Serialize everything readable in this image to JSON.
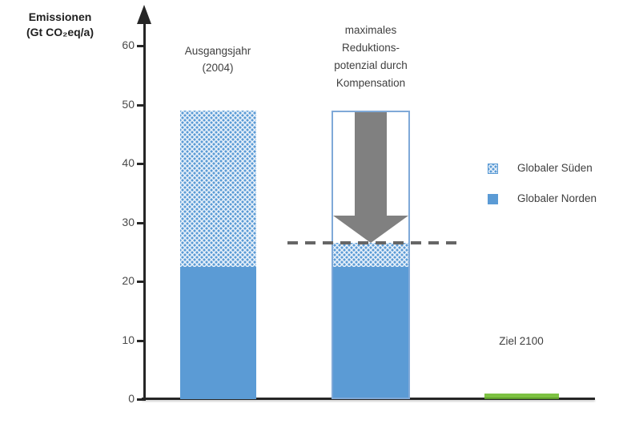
{
  "axis_title": {
    "line1": "Emissionen",
    "line2": "(Gt CO₂eq/a)"
  },
  "labels": {
    "bar1": [
      "Ausgangsjahr",
      "(2004)"
    ],
    "bar2": [
      "maximales",
      "Reduktions-",
      "potenzial durch",
      "Kompensation"
    ],
    "ziel": "Ziel 2100"
  },
  "legend": {
    "items": [
      {
        "label": "Globaler Süden",
        "swatch": "dotted-pattern-blue"
      },
      {
        "label": "Globaler Norden",
        "swatch": "solid-blue"
      }
    ],
    "position": "right"
  },
  "colors": {
    "norden_blue": "#5B9BD5",
    "sueden_pattern_blue": "#5B9BD5",
    "bar2_outline_blue": "#7FA9D8",
    "arrow_gray": "#808080",
    "dashed_line_gray": "#666666",
    "ziel_green": "#7DC242",
    "axis_black": "#262626",
    "text_gray": "#3F3F3F"
  },
  "chart_data": {
    "type": "bar",
    "title": "",
    "ylabel": "Emissionen (Gt CO₂eq/a)",
    "ylim": [
      0,
      63
    ],
    "yticks": [
      0,
      10,
      20,
      30,
      40,
      50,
      60
    ],
    "grid": false,
    "legend_position": "right",
    "categories": [
      "Ausgangsjahr (2004)",
      "maximales Reduktionspotenzial durch Kompensation",
      "Ziel 2100"
    ],
    "series": [
      {
        "name": "Globaler Norden",
        "style": "solid-blue",
        "values": [
          22.5,
          22.5,
          0
        ]
      },
      {
        "name": "Globaler Süden",
        "style": "dotted-pattern-blue",
        "values": [
          26.5,
          4,
          0
        ]
      }
    ],
    "stacked_totals": [
      49,
      26.5,
      0
    ],
    "outline_bar": {
      "category_index": 1,
      "top": 49,
      "note": "white bar outline showing original 2004 level"
    },
    "arrow": {
      "category_index": 1,
      "from": 49,
      "to": 26.5,
      "direction": "down"
    },
    "dashed_line_y": 26.5,
    "ziel_2100_value": 1
  }
}
